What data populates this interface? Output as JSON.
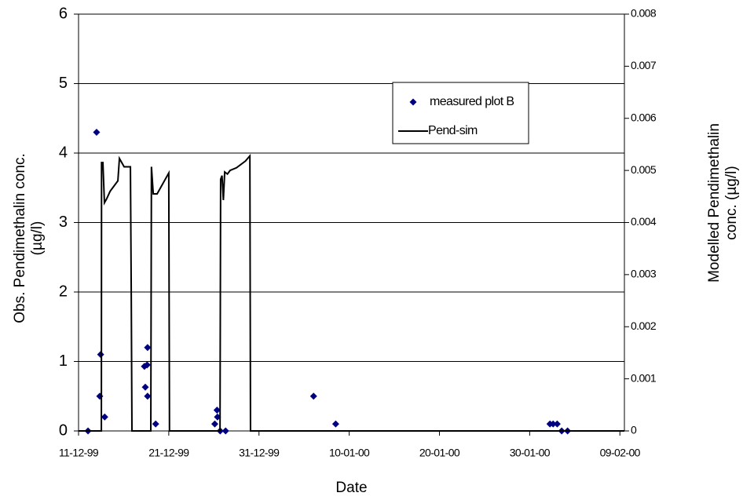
{
  "chart_data": {
    "type": "combo",
    "x_label": "Date",
    "y_label": [
      "Obs. Pendimethalin conc.",
      "(µg/l)"
    ],
    "y2_label": [
      "Modelled Pendimethalin",
      "conc. (µg/l)"
    ],
    "xlim": [
      0,
      60.5
    ],
    "xticks": [
      {
        "value": 0,
        "label": "11-12-99"
      },
      {
        "value": 10,
        "label": "21-12-99"
      },
      {
        "value": 20,
        "label": "31-12-99"
      },
      {
        "value": 30,
        "label": "10-01-00"
      },
      {
        "value": 40,
        "label": "20-01-00"
      },
      {
        "value": 50,
        "label": "30-01-00"
      },
      {
        "value": 60,
        "label": "09-02-00"
      }
    ],
    "ylim": [
      0,
      6
    ],
    "yticks": [
      0,
      1,
      2,
      3,
      4,
      5,
      6
    ],
    "y2lim": [
      0,
      0.008
    ],
    "y2ticks": [
      0,
      0.001,
      0.002,
      0.003,
      0.004,
      0.005,
      0.006,
      0.007,
      0.008
    ],
    "grid": true,
    "legend": "upper-right",
    "series": [
      {
        "name": "measured plot B",
        "type": "scatter",
        "color": "#000080",
        "x": [
          1.05,
          2.0,
          2.45,
          2.35,
          2.9,
          7.3,
          7.6,
          7.65,
          7.4,
          7.65,
          8.55,
          15.1,
          15.35,
          15.4,
          15.7,
          16.3,
          26.05,
          28.5,
          52.25,
          52.6,
          53.05,
          53.55,
          54.2
        ],
        "values": [
          0,
          4.3,
          1.1,
          0.5,
          0.2,
          0.93,
          0.95,
          1.2,
          0.63,
          0.5,
          0.1,
          0.1,
          0.3,
          0.2,
          0,
          0,
          0.5,
          0.1,
          0.1,
          0.1,
          0.1,
          0,
          0
        ]
      },
      {
        "name": "Pend-sim",
        "type": "line",
        "color": "#000000",
        "axis": "y2",
        "x": [
          0,
          2.53,
          2.55,
          2.7,
          2.87,
          3.1,
          3.5,
          4.36,
          4.53,
          4.79,
          5.05,
          5.75,
          5.84,
          5.92,
          8.01,
          8.08,
          8.28,
          8.71,
          10.0,
          10.08,
          15.68,
          15.75,
          15.9,
          16.05,
          16.2,
          16.5,
          16.8,
          17.5,
          18.5,
          18.99,
          19.06,
          60.5
        ],
        "values": [
          0,
          0,
          0.00515,
          0.00515,
          0.00438,
          0.00445,
          0.0046,
          0.0048,
          0.00523,
          0.00515,
          0.00507,
          0.00507,
          0.0027,
          0,
          0,
          0.00507,
          0.00455,
          0.00455,
          0.00495,
          0,
          0,
          0.00483,
          0.0049,
          0.00443,
          0.00497,
          0.00493,
          0.005,
          0.00505,
          0.00518,
          0.00528,
          0,
          0
        ]
      }
    ]
  }
}
